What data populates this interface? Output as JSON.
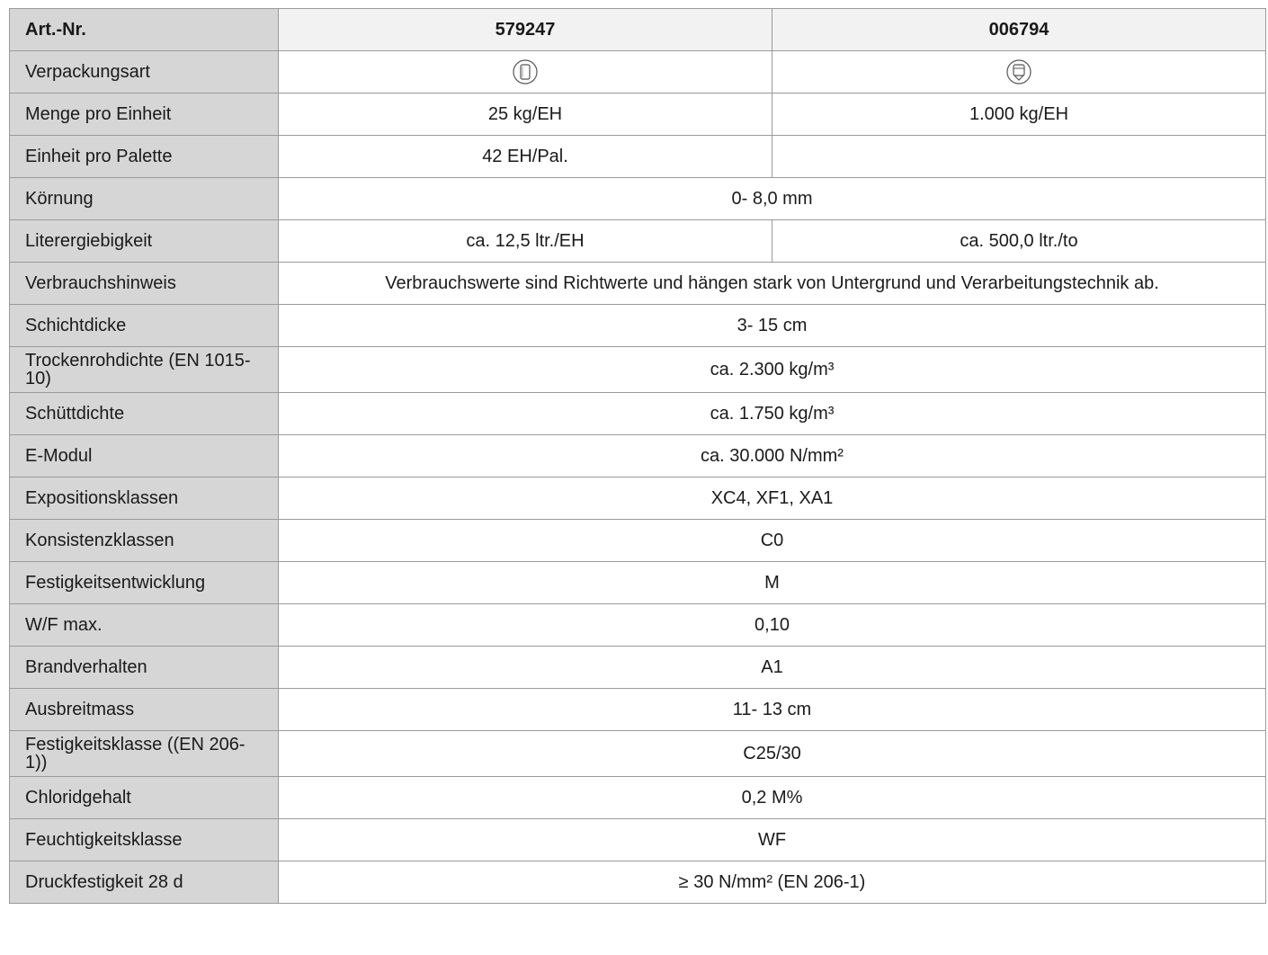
{
  "header": {
    "label": "Art.-Nr.",
    "col1": "579247",
    "col2": "006794"
  },
  "rows": {
    "verpackungsart": {
      "label": "Verpackungsart",
      "icon1": "sack-icon",
      "icon2": "bigbag-icon"
    },
    "menge": {
      "label": "Menge pro Einheit",
      "v1": "25 kg/EH",
      "v2": "1.000 kg/EH"
    },
    "palette": {
      "label": "Einheit pro Palette",
      "v1": "42 EH/Pal.",
      "v2": ""
    },
    "koernung": {
      "label": "Körnung",
      "v": "0- 8,0 mm"
    },
    "liter": {
      "label": "Literergiebigkeit",
      "v1": "ca. 12,5 ltr./EH",
      "v2": "ca. 500,0 ltr./to"
    },
    "verbrauch": {
      "label": "Verbrauchshinweis",
      "v": "Verbrauchswerte sind Richtwerte und hängen stark von Untergrund und Verarbeitungstechnik ab."
    },
    "schichtdicke": {
      "label": "Schichtdicke",
      "v": "3- 15 cm"
    },
    "trockenrohdichte": {
      "label": "Trockenrohdichte (EN 1015-10)",
      "v": "ca. 2.300 kg/m³"
    },
    "schuettdichte": {
      "label": "Schüttdichte",
      "v": "ca. 1.750 kg/m³"
    },
    "emodul": {
      "label": "E-Modul",
      "v": "ca. 30.000 N/mm²"
    },
    "exposition": {
      "label": "Expositionsklassen",
      "v": "XC4, XF1, XA1"
    },
    "konsistenz": {
      "label": "Konsistenzklassen",
      "v": "C0"
    },
    "festigkeitsentwicklung": {
      "label": "Festigkeitsentwicklung",
      "v": "M"
    },
    "wf": {
      "label": "W/F max.",
      "v": "0,10"
    },
    "brand": {
      "label": "Brandverhalten",
      "v": "A1"
    },
    "ausbreit": {
      "label": "Ausbreitmass",
      "v": "11- 13 cm"
    },
    "festigkeitsklasse": {
      "label": "Festigkeitsklasse ((EN 206-1))",
      "v": "C25/30"
    },
    "chlorid": {
      "label": "Chloridgehalt",
      "v": "0,2 M%"
    },
    "feuchtigkeit": {
      "label": "Feuchtigkeitsklasse",
      "v": "WF"
    },
    "druck": {
      "label": "Druckfestigkeit 28 d",
      "v": "≥ 30 N/mm² (EN 206-1)"
    }
  }
}
